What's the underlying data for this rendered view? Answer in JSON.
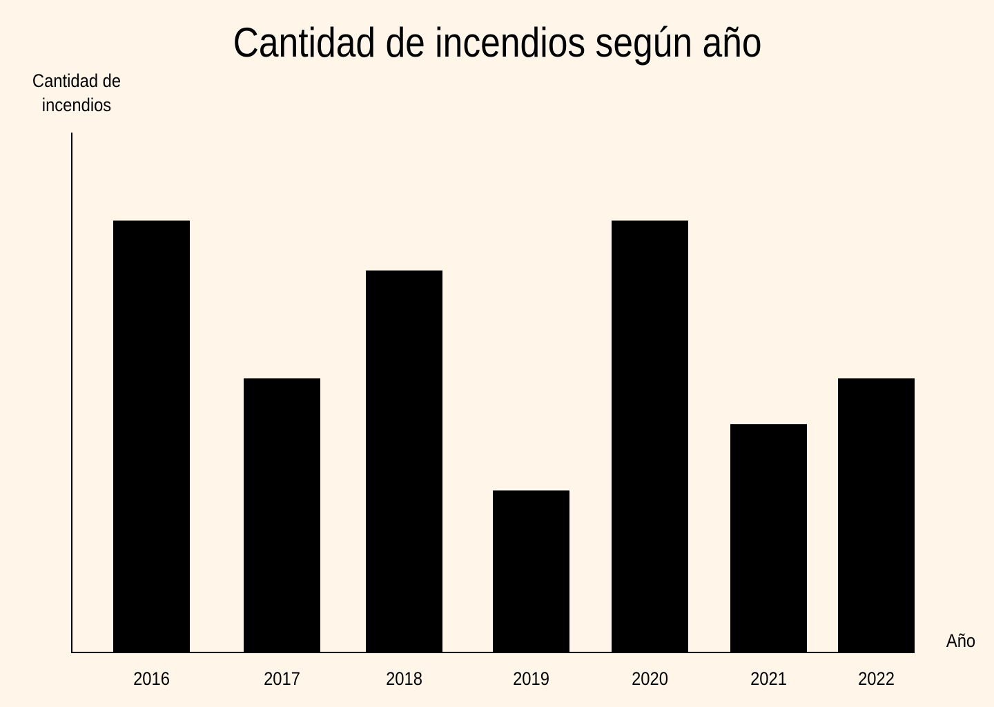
{
  "chart_data": {
    "type": "bar",
    "title": "Cantidad de incendios según año",
    "xlabel": "Año",
    "ylabel": [
      "Cantidad de",
      "incendios"
    ],
    "categories": [
      "2016",
      "2017",
      "2018",
      "2019",
      "2020",
      "2021",
      "2022"
    ],
    "values": [
      26,
      16.5,
      23,
      9.75,
      26,
      13.75,
      16.5
    ],
    "ylim": [
      0,
      31.3
    ],
    "y_ticks_shown": false,
    "grid": false,
    "legend": "none"
  },
  "colors": {
    "background": "#fff6e9",
    "bars": "#000000",
    "axis": "#000000",
    "text": "#000000"
  }
}
